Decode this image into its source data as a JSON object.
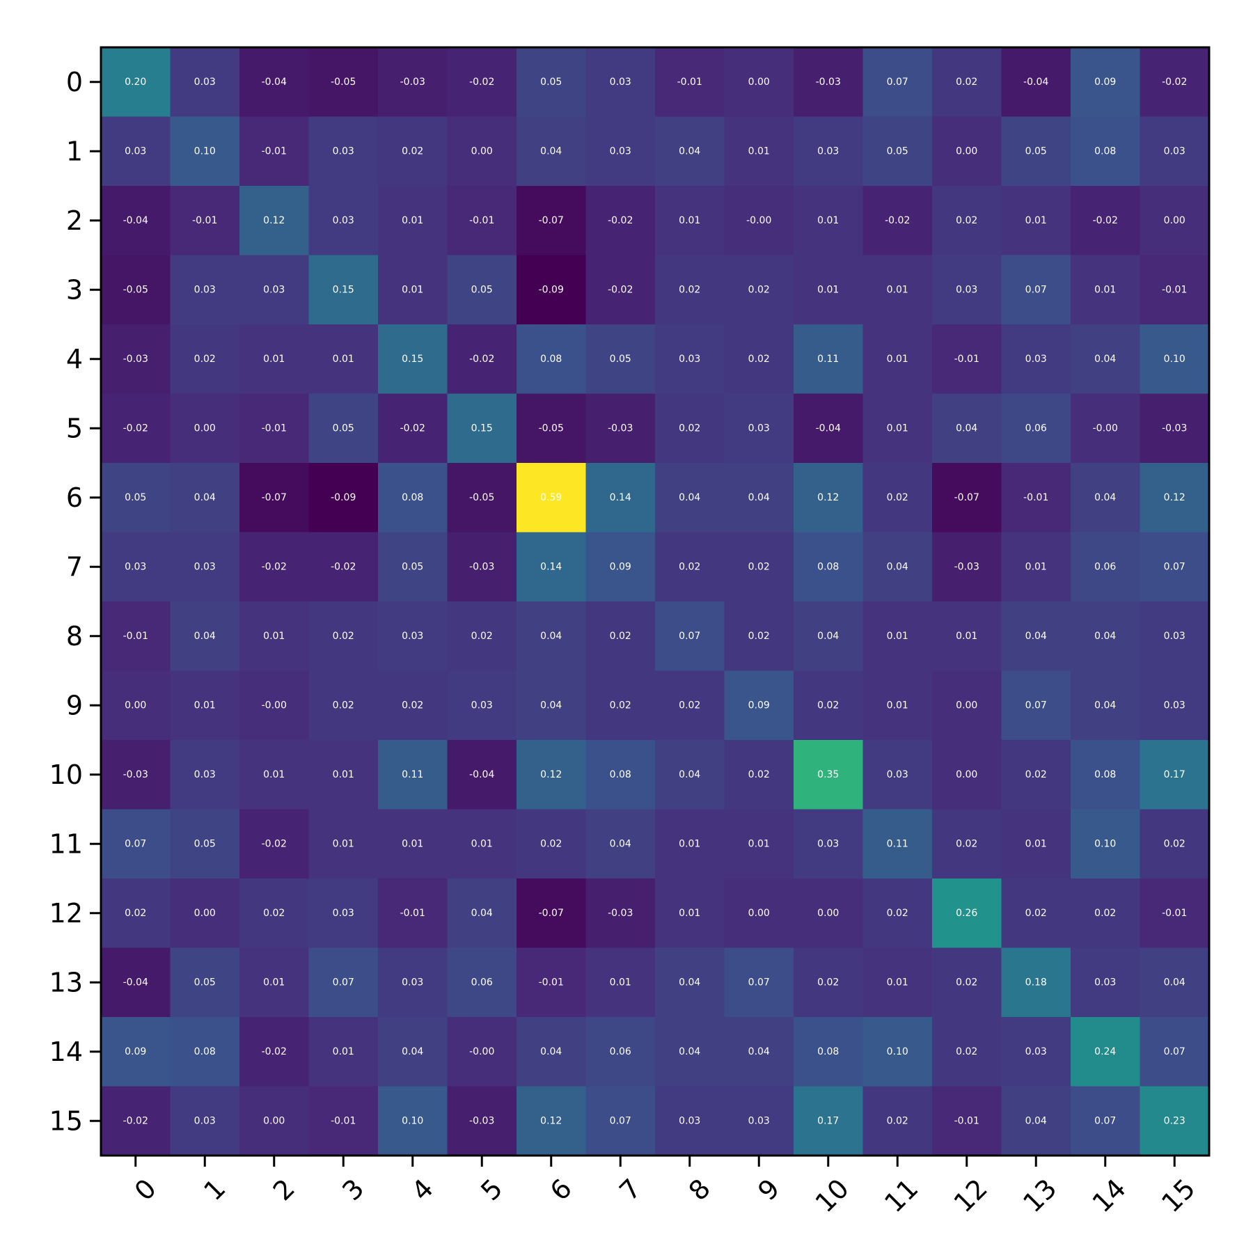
{
  "chart_data": {
    "type": "heatmap",
    "title": "",
    "xlabel": "",
    "ylabel": "",
    "x_ticks": [
      "0",
      "1",
      "2",
      "3",
      "4",
      "5",
      "6",
      "7",
      "8",
      "9",
      "10",
      "11",
      "12",
      "13",
      "14",
      "15"
    ],
    "y_ticks": [
      "0",
      "1",
      "2",
      "3",
      "4",
      "5",
      "6",
      "7",
      "8",
      "9",
      "10",
      "11",
      "12",
      "13",
      "14",
      "15"
    ],
    "colormap": "viridis",
    "vmin": -0.09,
    "vmax": 0.59,
    "grid": false,
    "x_tick_rotation_deg": 45,
    "cell_text_color": "#ffffff",
    "values": [
      [
        0.2,
        0.03,
        -0.04,
        -0.05,
        -0.03,
        -0.02,
        0.05,
        0.03,
        -0.01,
        0.0,
        -0.03,
        0.07,
        0.02,
        -0.04,
        0.09,
        -0.02
      ],
      [
        0.03,
        0.1,
        -0.01,
        0.03,
        0.02,
        0.0,
        0.04,
        0.03,
        0.04,
        0.01,
        0.03,
        0.05,
        0.0,
        0.05,
        0.08,
        0.03
      ],
      [
        -0.04,
        -0.01,
        0.12,
        0.03,
        0.01,
        -0.01,
        -0.07,
        -0.02,
        0.01,
        -0.0,
        0.01,
        -0.02,
        0.02,
        0.01,
        -0.02,
        0.0
      ],
      [
        -0.05,
        0.03,
        0.03,
        0.15,
        0.01,
        0.05,
        -0.09,
        -0.02,
        0.02,
        0.02,
        0.01,
        0.01,
        0.03,
        0.07,
        0.01,
        -0.01
      ],
      [
        -0.03,
        0.02,
        0.01,
        0.01,
        0.15,
        -0.02,
        0.08,
        0.05,
        0.03,
        0.02,
        0.11,
        0.01,
        -0.01,
        0.03,
        0.04,
        0.1
      ],
      [
        -0.02,
        0.0,
        -0.01,
        0.05,
        -0.02,
        0.15,
        -0.05,
        -0.03,
        0.02,
        0.03,
        -0.04,
        0.01,
        0.04,
        0.06,
        -0.0,
        -0.03
      ],
      [
        0.05,
        0.04,
        -0.07,
        -0.09,
        0.08,
        -0.05,
        0.59,
        0.14,
        0.04,
        0.04,
        0.12,
        0.02,
        -0.07,
        -0.01,
        0.04,
        0.12
      ],
      [
        0.03,
        0.03,
        -0.02,
        -0.02,
        0.05,
        -0.03,
        0.14,
        0.09,
        0.02,
        0.02,
        0.08,
        0.04,
        -0.03,
        0.01,
        0.06,
        0.07
      ],
      [
        -0.01,
        0.04,
        0.01,
        0.02,
        0.03,
        0.02,
        0.04,
        0.02,
        0.07,
        0.02,
        0.04,
        0.01,
        0.01,
        0.04,
        0.04,
        0.03
      ],
      [
        0.0,
        0.01,
        -0.0,
        0.02,
        0.02,
        0.03,
        0.04,
        0.02,
        0.02,
        0.09,
        0.02,
        0.01,
        0.0,
        0.07,
        0.04,
        0.03
      ],
      [
        -0.03,
        0.03,
        0.01,
        0.01,
        0.11,
        -0.04,
        0.12,
        0.08,
        0.04,
        0.02,
        0.35,
        0.03,
        0.0,
        0.02,
        0.08,
        0.17
      ],
      [
        0.07,
        0.05,
        -0.02,
        0.01,
        0.01,
        0.01,
        0.02,
        0.04,
        0.01,
        0.01,
        0.03,
        0.11,
        0.02,
        0.01,
        0.1,
        0.02
      ],
      [
        0.02,
        0.0,
        0.02,
        0.03,
        -0.01,
        0.04,
        -0.07,
        -0.03,
        0.01,
        0.0,
        0.0,
        0.02,
        0.26,
        0.02,
        0.02,
        -0.01
      ],
      [
        -0.04,
        0.05,
        0.01,
        0.07,
        0.03,
        0.06,
        -0.01,
        0.01,
        0.04,
        0.07,
        0.02,
        0.01,
        0.02,
        0.18,
        0.03,
        0.04
      ],
      [
        0.09,
        0.08,
        -0.02,
        0.01,
        0.04,
        -0.0,
        0.04,
        0.06,
        0.04,
        0.04,
        0.08,
        0.1,
        0.02,
        0.03,
        0.24,
        0.07
      ],
      [
        -0.02,
        0.03,
        0.0,
        -0.01,
        0.1,
        -0.03,
        0.12,
        0.07,
        0.03,
        0.03,
        0.17,
        0.02,
        -0.01,
        0.04,
        0.07,
        0.23
      ]
    ],
    "cell_text": [
      [
        "0.20",
        "0.03",
        "-0.04",
        "-0.05",
        "-0.03",
        "-0.02",
        "0.05",
        "0.03",
        "-0.01",
        "0.00",
        "-0.03",
        "0.07",
        "0.02",
        "-0.04",
        "0.09",
        "-0.02"
      ],
      [
        "0.03",
        "0.10",
        "-0.01",
        "0.03",
        "0.02",
        "0.00",
        "0.04",
        "0.03",
        "0.04",
        "0.01",
        "0.03",
        "0.05",
        "0.00",
        "0.05",
        "0.08",
        "0.03"
      ],
      [
        "-0.04",
        "-0.01",
        "0.12",
        "0.03",
        "0.01",
        "-0.01",
        "-0.07",
        "-0.02",
        "0.01",
        "-0.00",
        "0.01",
        "-0.02",
        "0.02",
        "0.01",
        "-0.02",
        "0.00"
      ],
      [
        "-0.05",
        "0.03",
        "0.03",
        "0.15",
        "0.01",
        "0.05",
        "-0.09",
        "-0.02",
        "0.02",
        "0.02",
        "0.01",
        "0.01",
        "0.03",
        "0.07",
        "0.01",
        "-0.01"
      ],
      [
        "-0.03",
        "0.02",
        "0.01",
        "0.01",
        "0.15",
        "-0.02",
        "0.08",
        "0.05",
        "0.03",
        "0.02",
        "0.11",
        "0.01",
        "-0.01",
        "0.03",
        "0.04",
        "0.10"
      ],
      [
        "-0.02",
        "0.00",
        "-0.01",
        "0.05",
        "-0.02",
        "0.15",
        "-0.05",
        "-0.03",
        "0.02",
        "0.03",
        "-0.04",
        "0.01",
        "0.04",
        "0.06",
        "-0.00",
        "-0.03"
      ],
      [
        "0.05",
        "0.04",
        "-0.07",
        "-0.09",
        "0.08",
        "-0.05",
        "0.59",
        "0.14",
        "0.04",
        "0.04",
        "0.12",
        "0.02",
        "-0.07",
        "-0.01",
        "0.04",
        "0.12"
      ],
      [
        "0.03",
        "0.03",
        "-0.02",
        "-0.02",
        "0.05",
        "-0.03",
        "0.14",
        "0.09",
        "0.02",
        "0.02",
        "0.08",
        "0.04",
        "-0.03",
        "0.01",
        "0.06",
        "0.07"
      ],
      [
        "-0.01",
        "0.04",
        "0.01",
        "0.02",
        "0.03",
        "0.02",
        "0.04",
        "0.02",
        "0.07",
        "0.02",
        "0.04",
        "0.01",
        "0.01",
        "0.04",
        "0.04",
        "0.03"
      ],
      [
        "0.00",
        "0.01",
        "-0.00",
        "0.02",
        "0.02",
        "0.03",
        "0.04",
        "0.02",
        "0.02",
        "0.09",
        "0.02",
        "0.01",
        "0.00",
        "0.07",
        "0.04",
        "0.03"
      ],
      [
        "-0.03",
        "0.03",
        "0.01",
        "0.01",
        "0.11",
        "-0.04",
        "0.12",
        "0.08",
        "0.04",
        "0.02",
        "0.35",
        "0.03",
        "0.00",
        "0.02",
        "0.08",
        "0.17"
      ],
      [
        "0.07",
        "0.05",
        "-0.02",
        "0.01",
        "0.01",
        "0.01",
        "0.02",
        "0.04",
        "0.01",
        "0.01",
        "0.03",
        "0.11",
        "0.02",
        "0.01",
        "0.10",
        "0.02"
      ],
      [
        "0.02",
        "0.00",
        "0.02",
        "0.03",
        "-0.01",
        "0.04",
        "-0.07",
        "-0.03",
        "0.01",
        "0.00",
        "0.00",
        "0.02",
        "0.26",
        "0.02",
        "0.02",
        "-0.01"
      ],
      [
        "-0.04",
        "0.05",
        "0.01",
        "0.07",
        "0.03",
        "0.06",
        "-0.01",
        "0.01",
        "0.04",
        "0.07",
        "0.02",
        "0.01",
        "0.02",
        "0.18",
        "0.03",
        "0.04"
      ],
      [
        "0.09",
        "0.08",
        "-0.02",
        "0.01",
        "0.04",
        "-0.00",
        "0.04",
        "0.06",
        "0.04",
        "0.04",
        "0.08",
        "0.10",
        "0.02",
        "0.03",
        "0.24",
        "0.07"
      ],
      [
        "-0.02",
        "0.03",
        "0.00",
        "-0.01",
        "0.10",
        "-0.03",
        "0.12",
        "0.07",
        "0.03",
        "0.03",
        "0.17",
        "0.02",
        "-0.01",
        "0.04",
        "0.07",
        "0.23"
      ]
    ]
  }
}
